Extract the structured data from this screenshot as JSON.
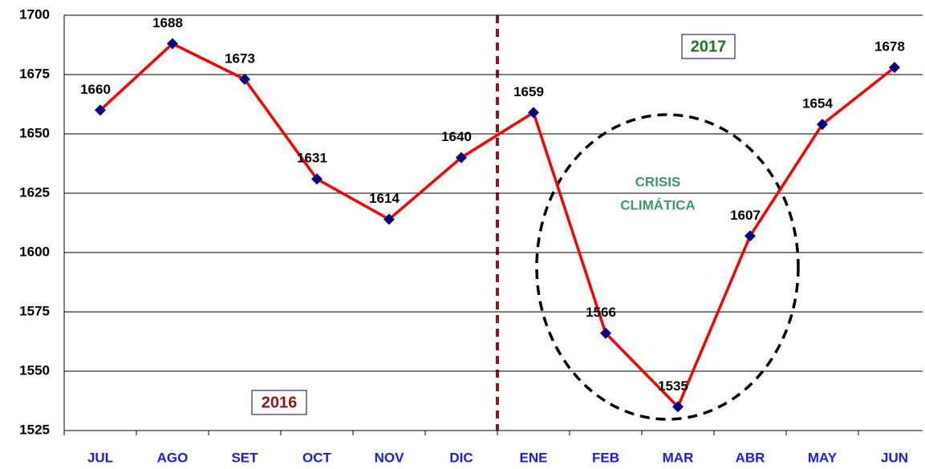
{
  "chart_data": {
    "type": "line",
    "categories": [
      "JUL",
      "AGO",
      "SET",
      "OCT",
      "NOV",
      "DIC",
      "ENE",
      "FEB",
      "MAR",
      "ABR",
      "MAY",
      "JUN"
    ],
    "series": [
      {
        "color": "#ff0000",
        "marker_color": "#000080",
        "values": [
          1660,
          1688,
          1673,
          1631,
          1614,
          1640,
          1659,
          1566,
          1535,
          1607,
          1654,
          1678
        ]
      }
    ],
    "ylim": [
      1525,
      1700
    ],
    "yticks": [
      1525,
      1550,
      1575,
      1600,
      1625,
      1650,
      1675,
      1700
    ],
    "grid": true,
    "annotations": [
      {
        "text": "2016"
      },
      {
        "text": "2017"
      },
      {
        "text": "CRISIS"
      },
      {
        "text": "CLIMÁTICA"
      }
    ]
  }
}
